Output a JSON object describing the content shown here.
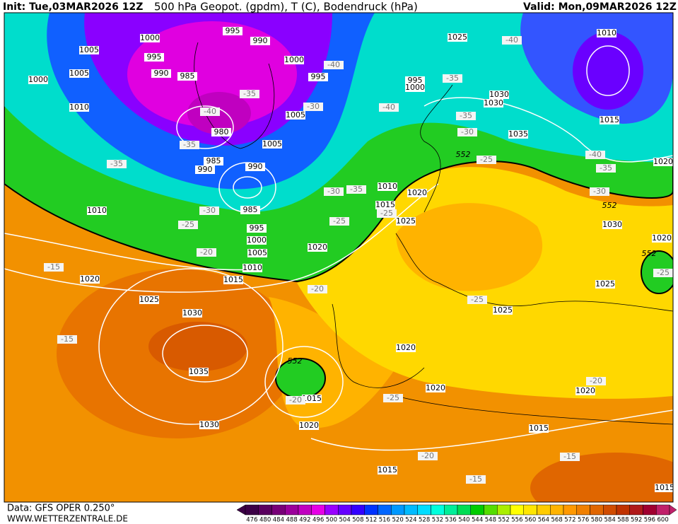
{
  "header": {
    "init": "Init: Tue,03MAR2026 12Z",
    "title": "500 hPa Geopot. (gpdm), T (C), Bodendruck (hPa)",
    "valid": "Valid: Mon,09MAR2026 12Z"
  },
  "footer": {
    "data": "Data: GFS OPER 0.250°",
    "site": "WWW.WETTERZENTRALE.DE"
  },
  "map": {
    "pressure_labels": [
      1000,
      1005,
      995,
      990,
      995,
      1000,
      990,
      985,
      1005,
      1000,
      995,
      1010,
      1005,
      980,
      1005,
      985,
      990,
      990,
      985,
      995,
      1000,
      1005,
      1010,
      1015,
      1010,
      1020,
      1025,
      1030,
      1035,
      1030,
      1020,
      1010,
      1015,
      1020,
      1025,
      995,
      1000,
      1025,
      1030,
      1030,
      1035,
      1010,
      1015,
      1020,
      1030,
      1020,
      1025,
      1025,
      1020,
      1020,
      1020,
      1015,
      1015,
      1020,
      1015,
      1015
    ],
    "temperature_labels": [
      -40,
      -35,
      -40,
      -30,
      -35,
      -35,
      -30,
      -25,
      -20,
      -15,
      -15,
      -20,
      -25,
      -30,
      -35,
      -40,
      -35,
      -35,
      -30,
      -25,
      -25,
      -40,
      -40,
      -35,
      -30,
      -25,
      -25,
      -25,
      -20,
      -20,
      -15,
      -15,
      -20
    ],
    "height_labels": [
      552,
      552,
      552,
      552
    ]
  },
  "colorbar": {
    "values": [
      476,
      480,
      484,
      488,
      492,
      496,
      500,
      504,
      508,
      512,
      516,
      520,
      524,
      528,
      532,
      536,
      540,
      544,
      548,
      552,
      556,
      560,
      564,
      568,
      572,
      576,
      580,
      584,
      588,
      592,
      596,
      600
    ],
    "colors": [
      "#3c0046",
      "#5a005f",
      "#780078",
      "#9b009b",
      "#c000c0",
      "#e600e6",
      "#9900ff",
      "#6600ff",
      "#3300ff",
      "#0033ff",
      "#0066ff",
      "#0099ff",
      "#00bbff",
      "#00ddff",
      "#00ffdd",
      "#00ee99",
      "#00dd55",
      "#00cc00",
      "#55dd00",
      "#aaee00",
      "#ffff00",
      "#ffe600",
      "#ffcc00",
      "#ffb300",
      "#ff9900",
      "#f08000",
      "#e06600",
      "#d04c00",
      "#c03300",
      "#b01a1a",
      "#a00030",
      "#c0206a"
    ]
  }
}
